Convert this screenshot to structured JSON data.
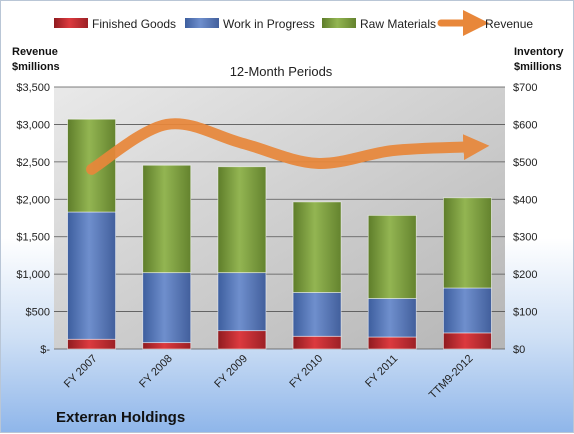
{
  "chart_data": {
    "type": "bar",
    "subtitle": "12-Month Periods",
    "company": "Exterran Holdings",
    "categories": [
      "FY 2007",
      "FY 2008",
      "FY 2009",
      "FY 2010",
      "FY 2011",
      "TTM9-2012"
    ],
    "left_axis": {
      "label_line1": "Revenue",
      "label_line2": "$millions",
      "ylim": [
        0,
        3500
      ],
      "ticks": [
        "$-",
        "$500",
        "$1,000",
        "$1,500",
        "$2,000",
        "$2,500",
        "$3,000",
        "$3,500"
      ],
      "tick_values": [
        0,
        500,
        1000,
        1500,
        2000,
        2500,
        3000,
        3500
      ]
    },
    "right_axis": {
      "label_line1": "Inventory",
      "label_line2": "$millions",
      "ylim": [
        0,
        700
      ],
      "ticks": [
        "$0",
        "$100",
        "$200",
        "$300",
        "$400",
        "$500",
        "$600",
        "$700"
      ],
      "tick_values": [
        0,
        100,
        200,
        300,
        400,
        500,
        600,
        700
      ]
    },
    "series": [
      {
        "name": "Finished Goods",
        "axis": "right",
        "kind": "stacked-bar",
        "color": "#c0262c",
        "values": [
          26,
          17,
          49,
          34,
          32,
          43
        ]
      },
      {
        "name": "Work in Progress",
        "axis": "right",
        "kind": "stacked-bar",
        "color": "#4f72b8",
        "values": [
          340,
          187,
          155,
          117,
          103,
          120
        ]
      },
      {
        "name": "Raw Materials",
        "axis": "right",
        "kind": "stacked-bar",
        "color": "#77993a",
        "values": [
          248,
          287,
          283,
          242,
          222,
          241
        ]
      },
      {
        "name": "Revenue",
        "axis": "left",
        "kind": "line",
        "color": "#e8873a",
        "values": [
          2400,
          3000,
          2750,
          2480,
          2650,
          2700
        ]
      }
    ],
    "grid": true,
    "legend_position": "top"
  }
}
